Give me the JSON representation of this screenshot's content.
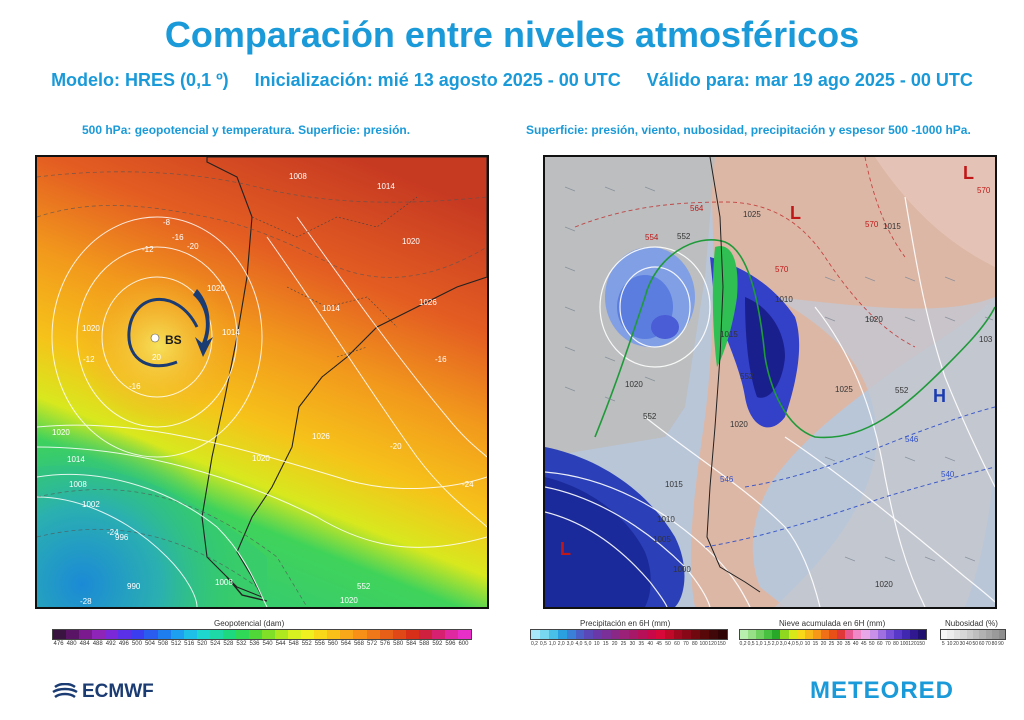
{
  "title": "Comparación entre niveles atmosféricos",
  "model": "Modelo: HRES (0,1 º)",
  "init": "Inicialización: mié 13 agosto 2025 - 00 UTC",
  "valid": "Válido para: mar 19 ago 2025 - 00 UTC",
  "left_panel": {
    "subtitle": "500 hPa: geopotencial y temperatura. Superficie: presión.",
    "low_label": "BS",
    "labels": {
      "p1008_top": "1008",
      "p1014_ne": "1014",
      "p1020_c": "1020",
      "p1020_ne": "1020",
      "p1014_c": "1014",
      "p1026_e": "1026",
      "p1014_e": "1014",
      "p1020_w": "1020",
      "p1020_sw": "1020",
      "p1014_sw": "1014",
      "p1008_sw": "1008",
      "p1002_sw": "1002",
      "p996_sw": "996",
      "p990_sw": "990",
      "p1020_s": "1020",
      "p1008_s": "1008",
      "p1026_se": "1026",
      "p1020_se": "1020",
      "t_m8": "-8",
      "t_m12": "-12",
      "t_m16": "-16",
      "t_m20": "-20",
      "t_m24": "-24",
      "t_m28": "-28",
      "t_m16b": "-16",
      "t_m20b": "-20",
      "t_m24b": "-24",
      "t_m12b": "-12",
      "t_m16c": "-16",
      "g_552": "552",
      "g_20": "20"
    },
    "legend_title": "Geopotencial (dam)",
    "legend_ticks": [
      "476",
      "480",
      "484",
      "488",
      "492",
      "496",
      "500",
      "504",
      "508",
      "512",
      "516",
      "520",
      "524",
      "528",
      "532",
      "536",
      "540",
      "544",
      "548",
      "552",
      "556",
      "560",
      "564",
      "568",
      "572",
      "576",
      "580",
      "584",
      "588",
      "592",
      "596",
      "600"
    ]
  },
  "right_panel": {
    "subtitle": "Superficie: presión, viento, nubosidad, precipitación y espesor 500 -1000 hPa.",
    "labels": {
      "L_nw": "L",
      "L_ne": "L",
      "L_sw": "L",
      "H_e": "H",
      "t_564": "564",
      "t_554": "554",
      "t_552a": "552",
      "t_570": "570",
      "t_570b": "570",
      "t_570c": "570",
      "t_552b": "552",
      "t_552c": "552",
      "t_552d": "552",
      "t_546": "546",
      "t_540": "540",
      "t_546b": "546",
      "p_1025": "1025",
      "p_1015": "1015",
      "p_1020": "1020",
      "p_1010": "1010",
      "p_1015b": "1015",
      "p_1010b": "1010",
      "p_1005": "1005",
      "p_1000": "1000",
      "p_1020b": "1020",
      "p_1025b": "1025",
      "p_1020c": "1020",
      "p_103": "103",
      "p_1020d": "1020",
      "p_1015c": "1015"
    },
    "legend_precip": {
      "title": "Precipitación en 6H (mm)",
      "ticks": [
        "0,2",
        "0,5",
        "1,0",
        "2,0",
        "3,0",
        "4,0",
        "5,0",
        "10",
        "15",
        "20",
        "25",
        "30",
        "35",
        "40",
        "45",
        "50",
        "60",
        "70",
        "80",
        "100",
        "120",
        "150"
      ]
    },
    "legend_snow": {
      "title": "Nieve acumulada en 6H (mm)",
      "ticks": [
        "0,2",
        "0,5",
        "1,0",
        "1,5",
        "2,0",
        "3,0",
        "4,0",
        "5,0",
        "10",
        "15",
        "20",
        "25",
        "30",
        "35",
        "40",
        "45",
        "50",
        "60",
        "70",
        "80",
        "100",
        "120",
        "150"
      ]
    },
    "legend_cloud": {
      "title": "Nubosidad (%)",
      "ticks": [
        "5",
        "10",
        "20",
        "30",
        "40",
        "50",
        "60",
        "70",
        "80",
        "90"
      ]
    }
  },
  "logos": {
    "ecmwf": "ECMWF",
    "meteored": "METEORED"
  },
  "colors": {
    "accent": "#1a9ad8",
    "ecmwf": "#1b3b73"
  }
}
